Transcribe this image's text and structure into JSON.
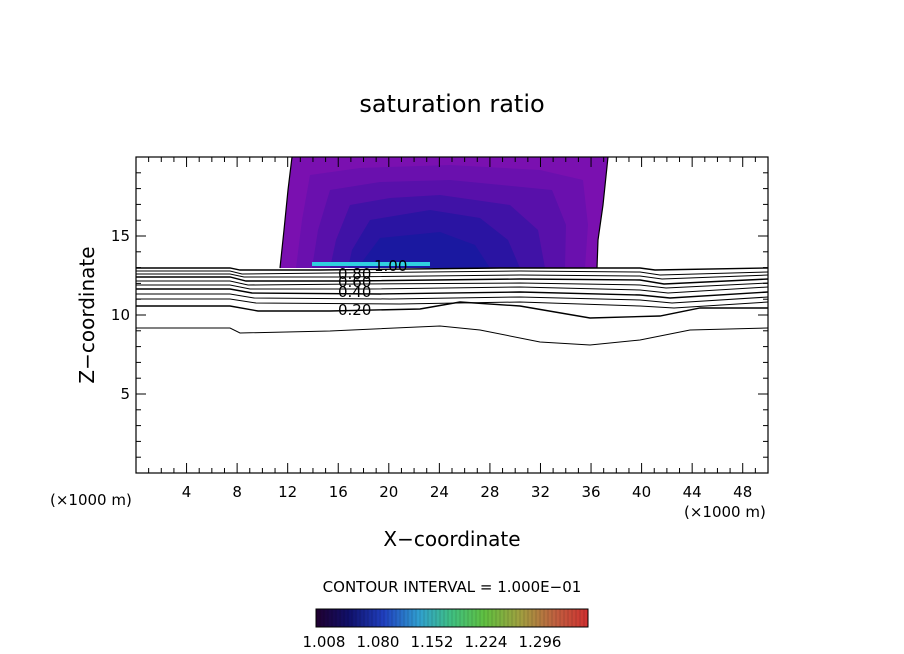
{
  "chart_data": {
    "type": "contour",
    "title": "saturation ratio",
    "xlabel": "X−coordinate",
    "ylabel": "Z−coordinate",
    "x_unit": "(×1000 m)",
    "xlim": [
      0,
      50
    ],
    "ylim": [
      0,
      20
    ],
    "x_ticks": [
      4,
      8,
      12,
      16,
      20,
      24,
      28,
      32,
      36,
      40,
      44,
      48
    ],
    "y_ticks": [
      5,
      10,
      15
    ],
    "contour_interval_text": "CONTOUR INTERVAL = 1.000E−01",
    "contour_labels": [
      "0.20",
      "0.40",
      "0.60",
      "0.80",
      "1.00"
    ],
    "filled_region": {
      "x_range": [
        11.5,
        36.5
      ],
      "z_range": [
        13,
        20
      ]
    },
    "colorbar": {
      "ticks": [
        "1.008",
        "1.080",
        "1.152",
        "1.224",
        "1.296"
      ],
      "colors": [
        "#200030",
        "#10106a",
        "#2040c0",
        "#30a0d0",
        "#40c080",
        "#60c040",
        "#a0a040",
        "#c06040",
        "#d03030"
      ]
    },
    "colors": {
      "fill_outer": "#7a10b0",
      "fill_mid": "#5010a8",
      "fill_core": "#1a1aa0",
      "band": "#30d0e0"
    }
  }
}
